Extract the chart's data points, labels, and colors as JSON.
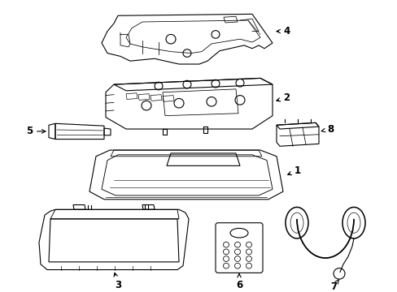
{
  "background_color": "#ffffff",
  "line_color": "#000000",
  "figsize": [
    4.89,
    3.6
  ],
  "dpi": 100,
  "label_fontsize": 8.5
}
